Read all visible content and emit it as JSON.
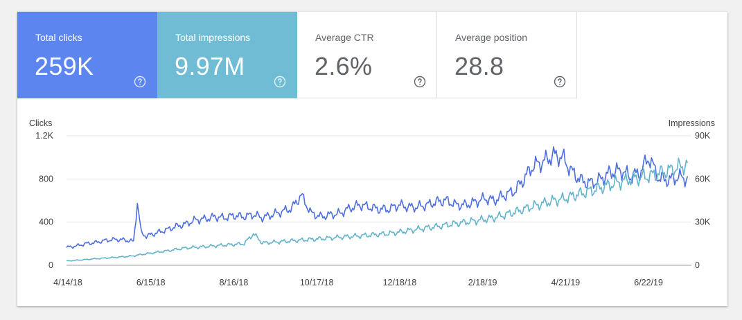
{
  "metrics": [
    {
      "label": "Total clicks",
      "value": "259K",
      "active": true,
      "color": "#5c85f0"
    },
    {
      "label": "Total impressions",
      "value": "9.97M",
      "active": true,
      "color": "#70bcd4"
    },
    {
      "label": "Average CTR",
      "value": "2.6%",
      "active": false,
      "color": "#ffffff"
    },
    {
      "label": "Average position",
      "value": "28.8",
      "active": false,
      "color": "#ffffff"
    }
  ],
  "icons": {
    "help": "help-circle-icon"
  },
  "chart_data": {
    "type": "line",
    "y_left_label": "Clicks",
    "y_right_label": "Impressions",
    "y_left_ticks": [
      "0",
      "400",
      "800",
      "1.2K"
    ],
    "y_right_ticks": [
      "0",
      "30K",
      "60K",
      "90K"
    ],
    "y_left_range": [
      0,
      1200
    ],
    "y_right_range": [
      0,
      90000
    ],
    "x_ticks": [
      "4/14/18",
      "6/15/18",
      "8/16/18",
      "10/17/18",
      "12/18/18",
      "2/18/19",
      "4/21/19",
      "6/22/19"
    ],
    "x_range_days": [
      0,
      485
    ],
    "series": [
      {
        "name": "Clicks",
        "axis": "left",
        "color": "#4c6ee0",
        "x": [
          0,
          8,
          15,
          22,
          30,
          38,
          45,
          52,
          55,
          58,
          62,
          70,
          78,
          85,
          92,
          100,
          108,
          115,
          122,
          130,
          138,
          145,
          152,
          160,
          168,
          175,
          182,
          190,
          198,
          205,
          212,
          220,
          228,
          235,
          242,
          250,
          258,
          265,
          272,
          280,
          288,
          295,
          302,
          310,
          318,
          325,
          332,
          340,
          348,
          355,
          362,
          370,
          378,
          385,
          392,
          400,
          408,
          415,
          422,
          430,
          438,
          445,
          452,
          460,
          468,
          475,
          482
        ],
        "values": [
          165,
          180,
          200,
          210,
          230,
          240,
          235,
          220,
          580,
          300,
          270,
          300,
          330,
          360,
          380,
          420,
          430,
          450,
          440,
          460,
          450,
          470,
          440,
          470,
          500,
          530,
          650,
          480,
          450,
          470,
          480,
          530,
          560,
          540,
          520,
          520,
          560,
          540,
          540,
          560,
          590,
          600,
          560,
          560,
          590,
          620,
          600,
          650,
          690,
          800,
          920,
          960,
          1020,
          1000,
          870,
          780,
          760,
          800,
          860,
          880,
          820,
          860,
          1000,
          800,
          790,
          820,
          800
        ]
      },
      {
        "name": "Impressions",
        "axis": "right",
        "color": "#62b3cb",
        "x": [
          0,
          8,
          15,
          22,
          30,
          38,
          45,
          52,
          55,
          58,
          62,
          70,
          78,
          85,
          92,
          100,
          108,
          115,
          122,
          130,
          138,
          145,
          152,
          160,
          168,
          175,
          182,
          190,
          198,
          205,
          212,
          220,
          228,
          235,
          242,
          250,
          258,
          265,
          272,
          280,
          288,
          295,
          302,
          310,
          318,
          325,
          332,
          340,
          348,
          355,
          362,
          370,
          378,
          385,
          392,
          400,
          408,
          415,
          422,
          430,
          438,
          445,
          452,
          460,
          468,
          475,
          482
        ],
        "values": [
          3000,
          3500,
          4000,
          4500,
          5000,
          5500,
          6000,
          6500,
          7000,
          7500,
          8000,
          9000,
          10000,
          11000,
          12000,
          12500,
          13000,
          13500,
          14000,
          14500,
          15000,
          22000,
          15500,
          16000,
          16500,
          17000,
          17500,
          18000,
          18500,
          19000,
          19500,
          20000,
          20500,
          21000,
          21500,
          22000,
          23000,
          24000,
          25000,
          26000,
          27000,
          28000,
          29000,
          30000,
          31000,
          32000,
          33000,
          35000,
          37000,
          39000,
          41000,
          43000,
          45000,
          46000,
          48000,
          50000,
          52000,
          54000,
          56000,
          58000,
          60000,
          61000,
          62000,
          64000,
          66000,
          68000,
          70000
        ]
      }
    ]
  }
}
